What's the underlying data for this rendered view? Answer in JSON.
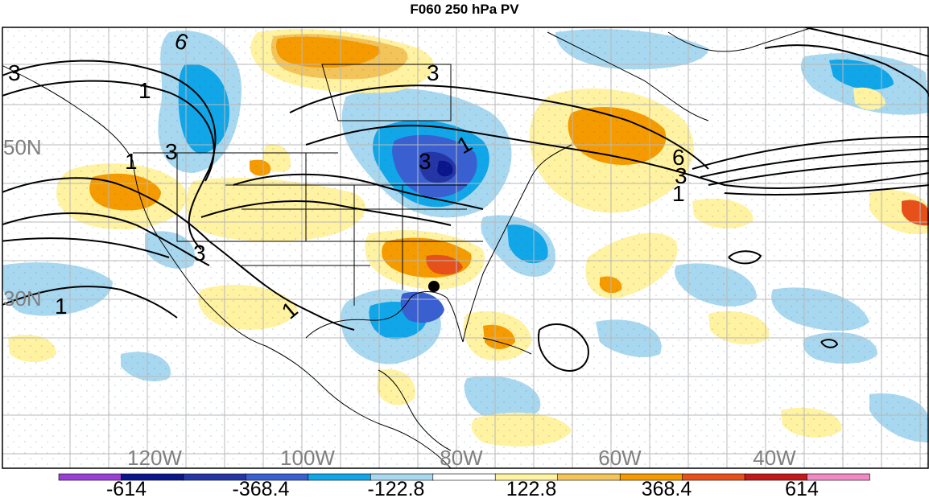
{
  "title": "F060 250 hPa PV",
  "latitude_labels": [
    "50N",
    "30N"
  ],
  "longitude_labels": [
    "120W",
    "100W",
    "80W",
    "60W",
    "40W"
  ],
  "contour_labels": [
    "6",
    "1",
    "3",
    "3",
    "1",
    "3",
    "3",
    "1",
    "3",
    "6",
    "3",
    "1",
    "1",
    "1"
  ],
  "colorbar": {
    "tick_labels": [
      "-614",
      "-368.4",
      "-122.8",
      "122.8",
      "368.4",
      "614"
    ],
    "colors": [
      "#9a3fd6",
      "#0b168c",
      "#2436a6",
      "#3a5fd0",
      "#10a6e8",
      "#a8d8f0",
      "#ffffff",
      "#fff2a0",
      "#f2c45a",
      "#f59b00",
      "#e8501a",
      "#c21a1a",
      "#f08ac4"
    ]
  },
  "colors": {
    "land_border": "#000000",
    "grid": "#b8b8b8",
    "contour_line": "#000000",
    "axis_label": "#808080"
  }
}
